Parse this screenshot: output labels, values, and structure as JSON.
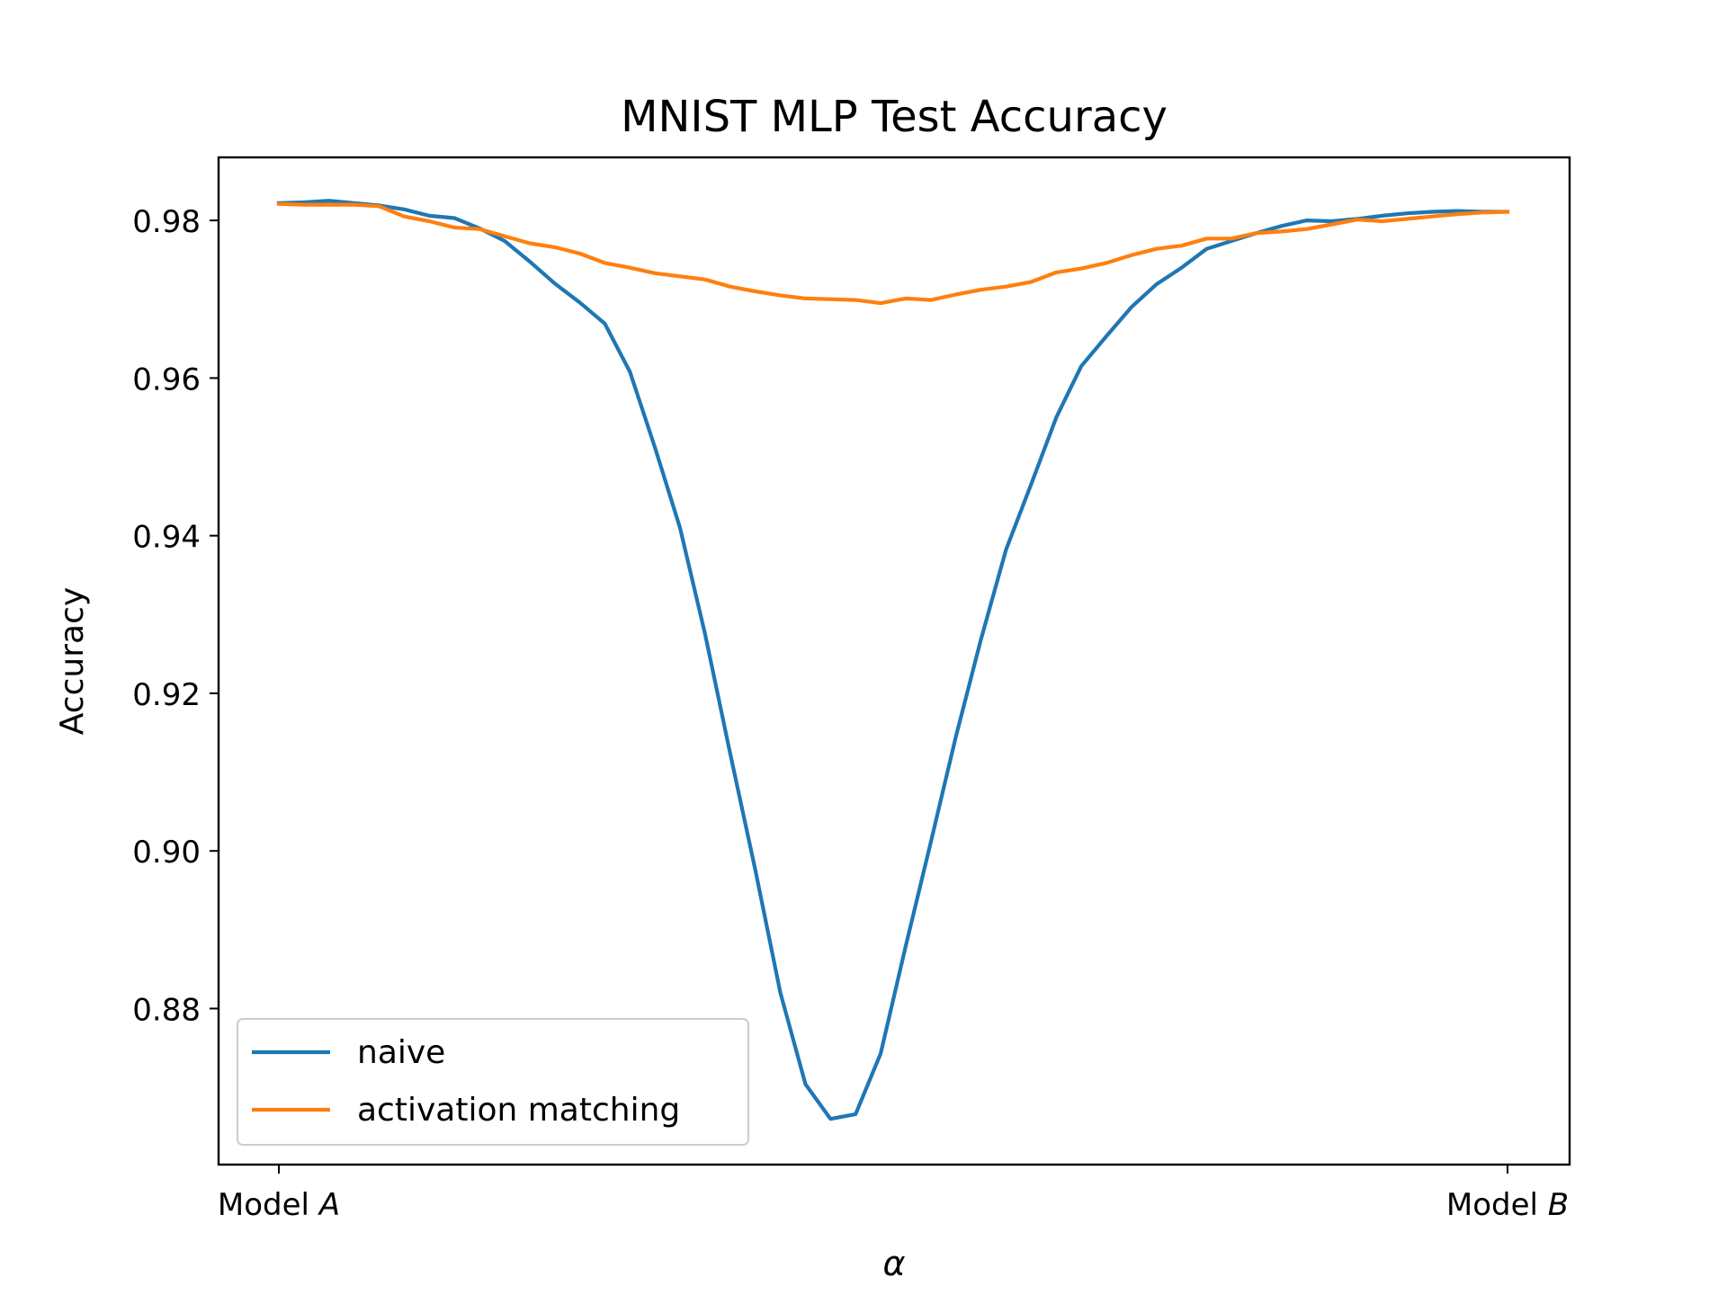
{
  "chart_data": {
    "type": "line",
    "title": "MNIST MLP Test Accuracy",
    "xlabel": "α",
    "ylabel": "Accuracy",
    "x_range": [
      0,
      1
    ],
    "ylim": [
      0.8602,
      0.988
    ],
    "x_ticks": [
      {
        "value": 0,
        "prefix": "Model ",
        "var": "A"
      },
      {
        "value": 1,
        "prefix": "Model ",
        "var": "B"
      }
    ],
    "y_ticks": [
      0.88,
      0.9,
      0.92,
      0.94,
      0.96,
      0.98
    ],
    "y_tick_labels": [
      "0.88",
      "0.90",
      "0.92",
      "0.94",
      "0.96",
      "0.98"
    ],
    "grid": false,
    "legend": "lower-left",
    "x": [
      0.0,
      0.0204,
      0.0408,
      0.0612,
      0.0816,
      0.102,
      0.1224,
      0.1429,
      0.1633,
      0.1837,
      0.2041,
      0.2245,
      0.2449,
      0.2653,
      0.2857,
      0.3061,
      0.3265,
      0.3469,
      0.3673,
      0.3878,
      0.4082,
      0.4286,
      0.449,
      0.4694,
      0.4898,
      0.5102,
      0.5306,
      0.551,
      0.5714,
      0.5918,
      0.6122,
      0.6327,
      0.6531,
      0.6735,
      0.6939,
      0.7143,
      0.7347,
      0.7551,
      0.7755,
      0.7959,
      0.8163,
      0.8367,
      0.8571,
      0.8776,
      0.898,
      0.9184,
      0.9388,
      0.9592,
      0.9796,
      1.0
    ],
    "series": [
      {
        "name": "naive",
        "color": "#1f77b4",
        "values": [
          0.9822,
          0.9823,
          0.9825,
          0.9822,
          0.9819,
          0.9814,
          0.9806,
          0.9803,
          0.979,
          0.9774,
          0.9748,
          0.972,
          0.9696,
          0.9669,
          0.9608,
          0.9512,
          0.941,
          0.9275,
          0.9124,
          0.8976,
          0.882,
          0.8704,
          0.866,
          0.8666,
          0.8743,
          0.8879,
          0.9011,
          0.9145,
          0.9268,
          0.9382,
          0.9465,
          0.955,
          0.9615,
          0.9653,
          0.969,
          0.9719,
          0.974,
          0.9764,
          0.9774,
          0.9784,
          0.9793,
          0.98,
          0.9799,
          0.9802,
          0.9806,
          0.9809,
          0.9811,
          0.9812,
          0.9811,
          0.9811
        ]
      },
      {
        "name": "activation matching",
        "color": "#ff7f0e",
        "values": [
          0.9821,
          0.982,
          0.982,
          0.982,
          0.9818,
          0.9805,
          0.9799,
          0.9791,
          0.9789,
          0.978,
          0.9771,
          0.9766,
          0.9758,
          0.9746,
          0.974,
          0.9733,
          0.9729,
          0.9725,
          0.9716,
          0.971,
          0.9705,
          0.9701,
          0.97,
          0.9699,
          0.9695,
          0.9701,
          0.9699,
          0.9706,
          0.9712,
          0.9716,
          0.9722,
          0.9734,
          0.9739,
          0.9746,
          0.9756,
          0.9764,
          0.9768,
          0.9777,
          0.9777,
          0.9784,
          0.9786,
          0.9789,
          0.9795,
          0.9801,
          0.9799,
          0.9802,
          0.9805,
          0.9808,
          0.981,
          0.9811
        ]
      }
    ]
  }
}
